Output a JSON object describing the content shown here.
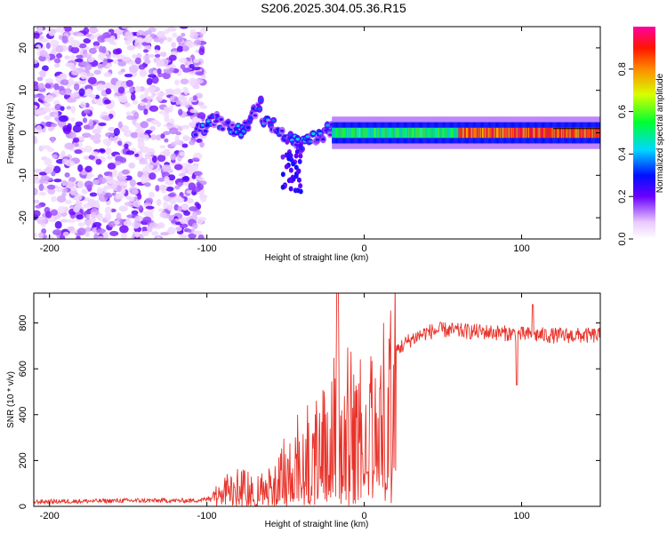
{
  "title": "S206.2025.304.05.36.R15",
  "chart_data": [
    {
      "type": "heatmap",
      "xlabel": "Height of straight line (km)",
      "ylabel": "Frequency (Hz)",
      "xlim": [
        -210,
        150
      ],
      "ylim": [
        -25,
        25
      ],
      "xticks": [
        -200,
        -100,
        0,
        100
      ],
      "xtick_labels": [
        "-200",
        "-100",
        "0",
        "100"
      ],
      "yticks": [
        20,
        10,
        0,
        -10,
        -20
      ],
      "ytick_labels": [
        "20",
        "10",
        "0",
        "-10",
        "-20"
      ],
      "colorbar": {
        "label": "Normalized spectral amplitude",
        "ticks": [
          0.0,
          0.2,
          0.4,
          0.6,
          0.8
        ],
        "tick_labels": [
          "0.0",
          "0.2",
          "0.4",
          "0.6",
          "0.8"
        ],
        "range": [
          0,
          1
        ]
      },
      "description_of_data": [
        {
          "x_range": [
            -210,
            -100
          ],
          "frequency_range": [
            -25,
            25
          ],
          "amplitude": 0.15,
          "pattern": "scattered noise"
        },
        {
          "x_range": [
            -108,
            -20
          ],
          "frequency_center": 0,
          "amplitude": 0.35,
          "pattern": "wandering blobs, dips near -45 km"
        },
        {
          "x_range": [
            -20,
            150
          ],
          "frequency_center": 0,
          "amplitude": 0.55,
          "pattern": "stable carrier"
        },
        {
          "x_range": [
            60,
            150
          ],
          "frequency_center": 0,
          "amplitude": 0.95,
          "pattern": "strong carrier"
        }
      ]
    },
    {
      "type": "line",
      "xlabel": "Height of straight line (km)",
      "ylabel": "SNR (10 * v/v)",
      "xlim": [
        -210,
        150
      ],
      "ylim": [
        0,
        930
      ],
      "xticks": [
        -200,
        -100,
        0,
        100
      ],
      "xtick_labels": [
        "-200",
        "-100",
        "0",
        "100"
      ],
      "yticks": [
        0,
        200,
        400,
        600,
        800
      ],
      "ytick_labels": [
        "0",
        "200",
        "400",
        "600",
        "800"
      ],
      "series": [
        {
          "name": "SNR",
          "color": "#e8332a",
          "x": [
            -210,
            -150,
            -110,
            -100,
            -90,
            -80,
            -70,
            -60,
            -50,
            -40,
            -30,
            -20,
            -10,
            0,
            10,
            20,
            30,
            40,
            50,
            60,
            80,
            100,
            120,
            150
          ],
          "y": [
            20,
            25,
            25,
            30,
            80,
            120,
            90,
            120,
            200,
            300,
            350,
            420,
            480,
            430,
            560,
            680,
            730,
            760,
            770,
            765,
            760,
            750,
            745,
            745
          ]
        }
      ]
    }
  ]
}
